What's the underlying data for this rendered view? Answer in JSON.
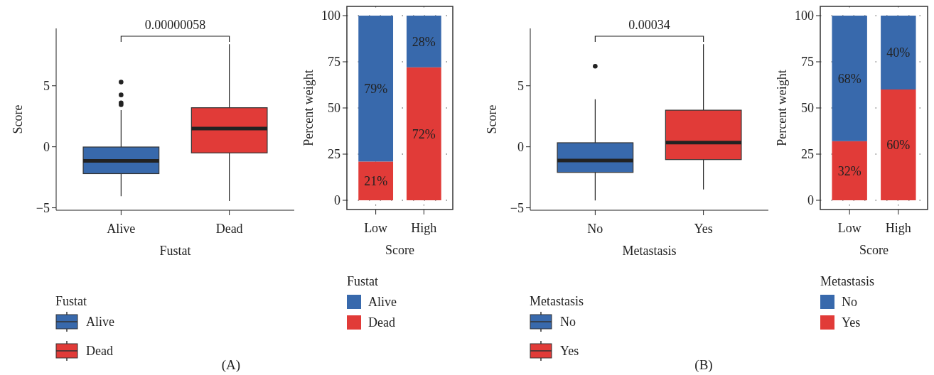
{
  "chart_data": [
    {
      "type": "box",
      "categories": [
        "Alive",
        "Dead"
      ],
      "xlabel": "Fustat",
      "ylabel": "Score",
      "ylim": [
        -5.2,
        9.7
      ],
      "yticks": [
        {
          "value": -5,
          "label": "−5"
        },
        0,
        5
      ],
      "legend": "bottom",
      "legend_title": "Fustat",
      "annotations": [
        "0.00000058",
        "(A)"
      ],
      "series": [
        {
          "name": "Alive",
          "color": "#3869ac",
          "boxes": [
            {
              "low": -4.05,
              "q1": -2.2,
              "median": -1.15,
              "q3": -0.02,
              "high": 3.0,
              "outliers": [
                5.3,
                4.25,
                3.6,
                3.45
              ]
            },
            null
          ]
        },
        {
          "name": "Dead",
          "color": "#e13b38",
          "boxes": [
            null,
            {
              "low": -4.45,
              "q1": -0.5,
              "median": 1.5,
              "q3": 3.2,
              "high": 8.4
            }
          ]
        }
      ]
    },
    {
      "type": "bar",
      "stacked": true,
      "categories": [
        "Low",
        "High"
      ],
      "xlabel": "Score",
      "ylabel": "Percent weight",
      "ylim": [
        -5,
        105
      ],
      "yticks": [
        0,
        25,
        50,
        75,
        100
      ],
      "grid": true,
      "legend": "bottom",
      "legend_title": "Fustat",
      "series": [
        {
          "name": "Dead",
          "color": "#e13b38",
          "values": [
            21,
            72
          ],
          "value_labels": [
            "21%",
            "72%"
          ]
        },
        {
          "name": "Alive",
          "color": "#3869ac",
          "values": [
            79,
            28
          ],
          "value_labels": [
            "79%",
            "28%"
          ]
        }
      ]
    },
    {
      "type": "box",
      "categories": [
        "No",
        "Yes"
      ],
      "xlabel": "Metastasis",
      "ylabel": "Score",
      "ylim": [
        -5.2,
        9.7
      ],
      "yticks": [
        {
          "value": -5,
          "label": "−5"
        },
        0,
        5
      ],
      "legend": "bottom",
      "legend_title": "Metastasis",
      "annotations": [
        "0.00034",
        "(B)"
      ],
      "series": [
        {
          "name": "No",
          "color": "#3869ac",
          "boxes": [
            {
              "low": -4.4,
              "q1": -2.1,
              "median": -1.12,
              "q3": 0.33,
              "high": 3.9,
              "outliers": [
                6.6
              ]
            },
            null
          ]
        },
        {
          "name": "Yes",
          "color": "#e13b38",
          "boxes": [
            null,
            {
              "low": -3.5,
              "q1": -1.05,
              "median": 0.35,
              "q3": 3.0,
              "high": 8.4
            }
          ]
        }
      ]
    },
    {
      "type": "bar",
      "stacked": true,
      "categories": [
        "Low",
        "High"
      ],
      "xlabel": "Score",
      "ylabel": "Percent weight",
      "ylim": [
        -5,
        105
      ],
      "yticks": [
        0,
        25,
        50,
        75,
        100
      ],
      "grid": true,
      "legend": "bottom",
      "legend_title": "Metastasis",
      "series": [
        {
          "name": "Yes",
          "color": "#e13b38",
          "values": [
            32,
            60
          ],
          "value_labels": [
            "32%",
            "60%"
          ]
        },
        {
          "name": "No",
          "color": "#3869ac",
          "values": [
            68,
            40
          ],
          "value_labels": [
            "68%",
            "40%"
          ]
        }
      ]
    }
  ]
}
